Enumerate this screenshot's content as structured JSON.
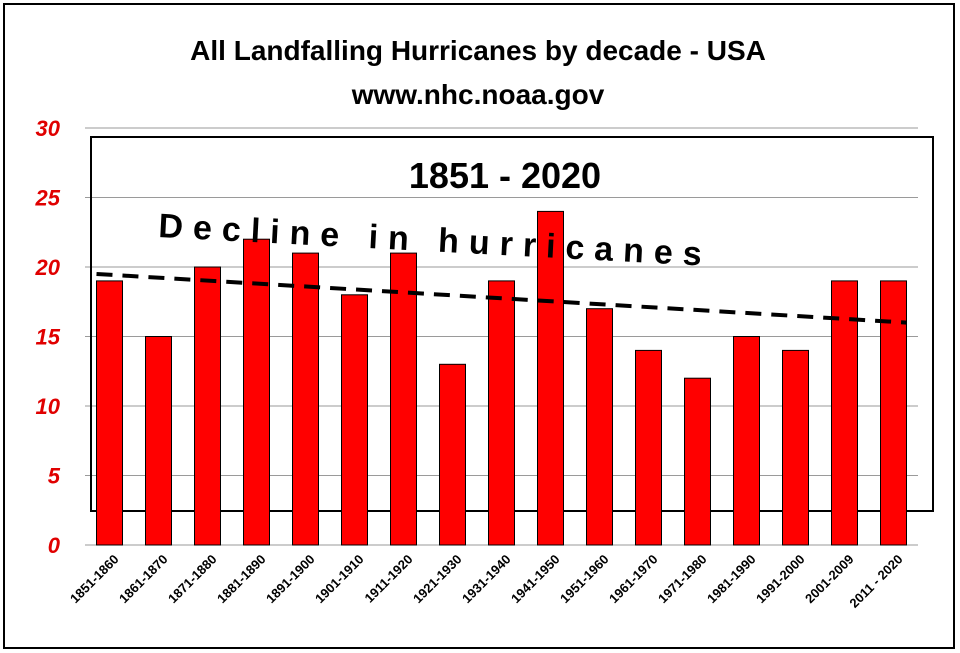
{
  "chart_data": {
    "type": "bar",
    "title": "All Landfalling Hurricanes by decade - USA",
    "subtitle": "www.nhc.noaa.gov",
    "categories": [
      "1851-1860",
      "1861-1870",
      "1871-1880",
      "1881-1890",
      "1891-1900",
      "1901-1910",
      "1911-1920",
      "1921-1930",
      "1931-1940",
      "1941-1950",
      "1951-1960",
      "1961-1970",
      "1971-1980",
      "1981-1990",
      "1991-2000",
      "2001-2009",
      "2011 - 2020"
    ],
    "values": [
      19,
      15,
      20,
      22,
      21,
      18,
      21,
      13,
      19,
      24,
      17,
      14,
      12,
      15,
      14,
      19,
      19
    ],
    "ylim": [
      0,
      30
    ],
    "yticks": [
      0,
      5,
      10,
      15,
      20,
      25,
      30
    ],
    "grid": true,
    "bar_color": "#ff0000",
    "tick_color": "#e00000",
    "trendline": {
      "style": "dashed",
      "start_value": 19.5,
      "end_value": 16
    },
    "annotations": {
      "period": "1851 - 2020",
      "note": "Decline in hurricanes"
    }
  }
}
